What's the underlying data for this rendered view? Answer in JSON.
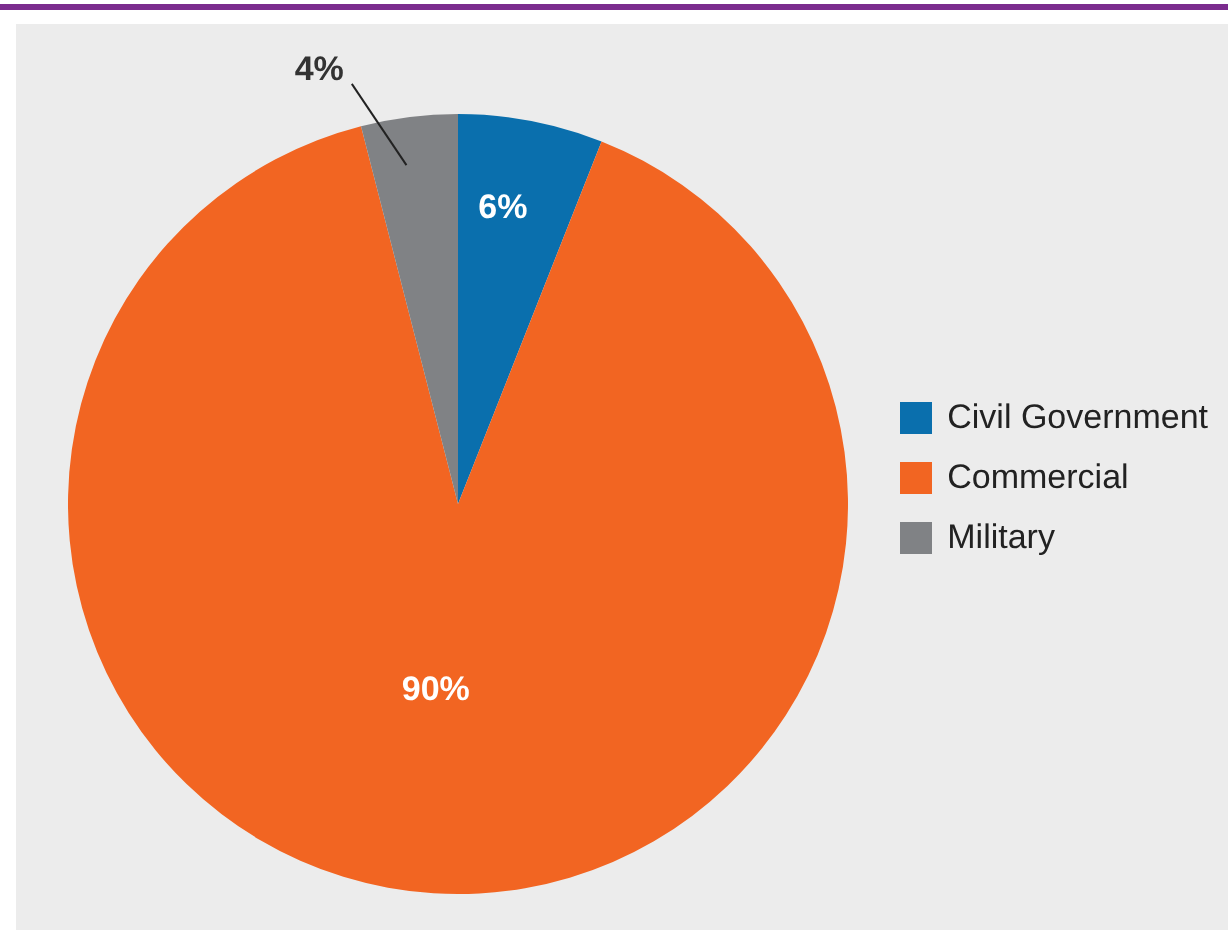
{
  "chart_data": {
    "type": "pie",
    "categories": [
      "Civil Government",
      "Commercial",
      "Military"
    ],
    "values": [
      6,
      90,
      4
    ],
    "colors": [
      "#0a6fad",
      "#f26522",
      "#808285"
    ],
    "value_labels": [
      "6%",
      "90%",
      "4%"
    ],
    "legend": "right"
  }
}
